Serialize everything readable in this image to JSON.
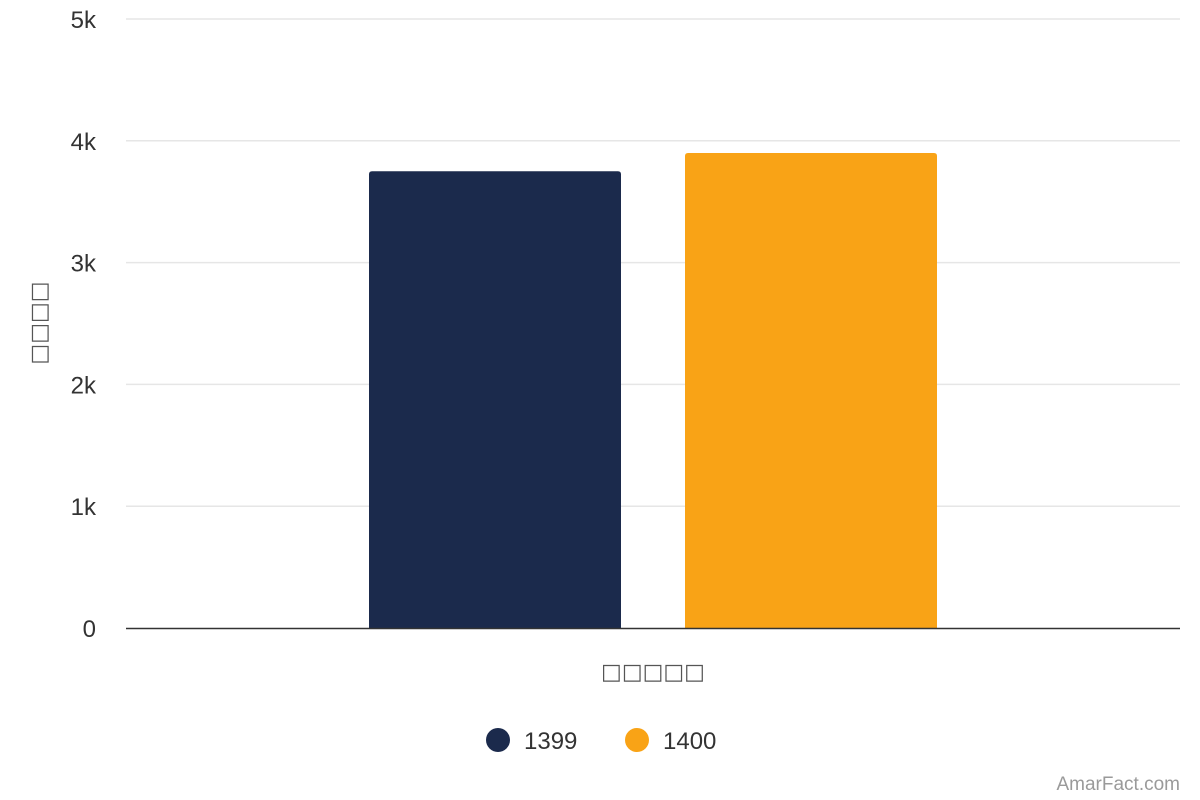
{
  "chart_data": {
    "type": "bar",
    "categories": [
      "□□□□□"
    ],
    "series": [
      {
        "name": "1399",
        "color": "#1b2a4c",
        "values": [
          3750
        ]
      },
      {
        "name": "1400",
        "color": "#f9a316",
        "values": [
          3900
        ]
      }
    ],
    "xlabel": "□□□□□",
    "ylabel": "□□□□",
    "ylim": [
      0,
      5000
    ],
    "yticks": [
      0,
      1000,
      2000,
      3000,
      4000,
      5000
    ],
    "ytick_labels": [
      "0",
      "1k",
      "2k",
      "3k",
      "4k",
      "5k"
    ],
    "grid": true,
    "legend_position": "bottom-center"
  },
  "credit": "AmarFact.com",
  "colors": {
    "grid": "#e6e6e6",
    "axis": "#333333"
  }
}
